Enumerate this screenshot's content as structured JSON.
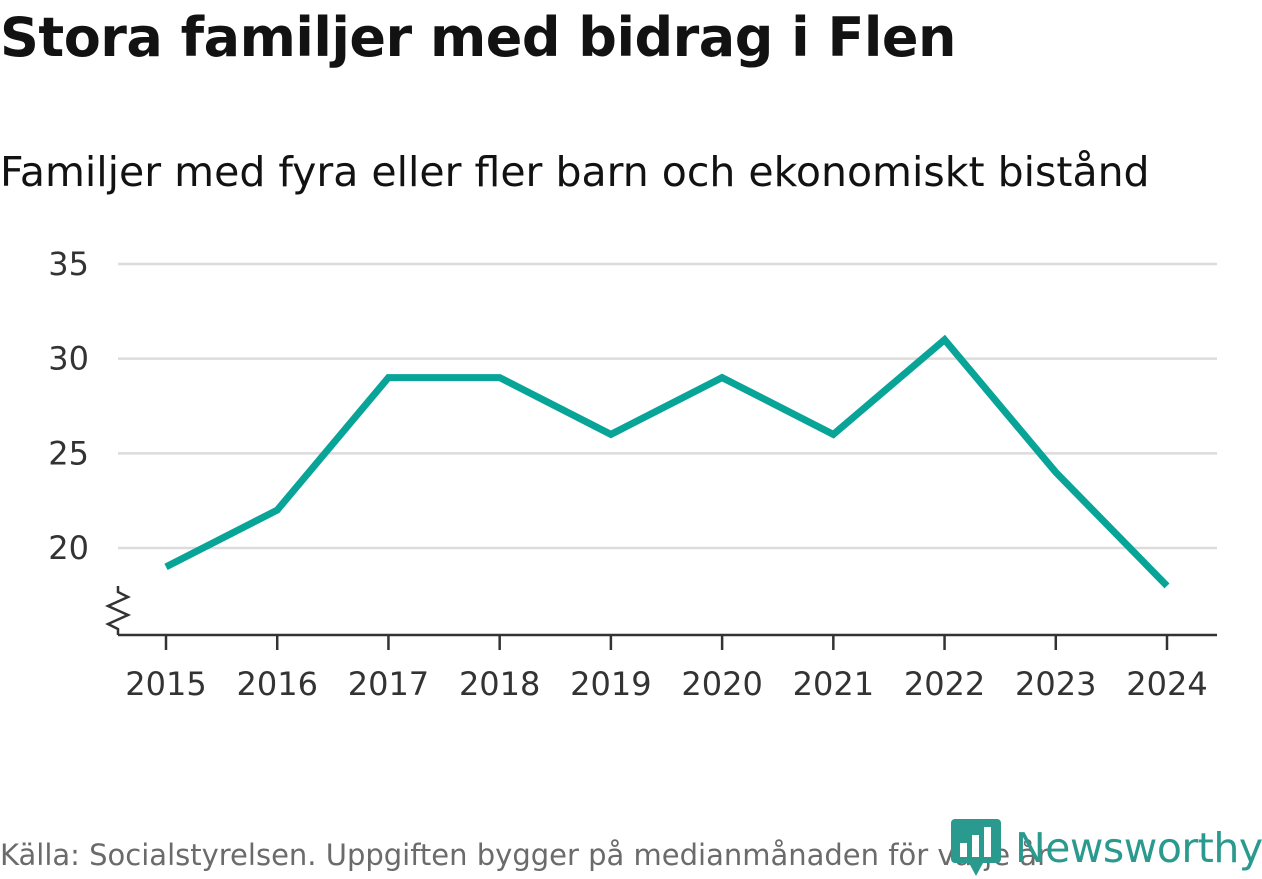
{
  "title": "Stora familjer med bidrag i Flen",
  "subtitle": "Familjer med fyra eller fler barn och ekonomiskt bistånd",
  "source": "Källa: Socialstyrelsen. Uppgiften bygger på medianmånaden för varje år",
  "logo": {
    "text": "Newsworthy",
    "icon": "bar-chart-icon",
    "color": "#2a9a8e"
  },
  "colors": {
    "line": "#08a497",
    "grid": "#dcdcdc",
    "axis": "#333333"
  },
  "chart_data": {
    "type": "line",
    "title": "Stora familjer med bidrag i Flen",
    "subtitle": "Familjer med fyra eller fler barn och ekonomiskt bistånd",
    "xlabel": "",
    "ylabel": "",
    "x": [
      "2015",
      "2016",
      "2017",
      "2018",
      "2019",
      "2020",
      "2021",
      "2022",
      "2023",
      "2024"
    ],
    "series": [
      {
        "name": "Familjer med fyra eller fler barn och ekonomiskt bistånd",
        "values": [
          19,
          22,
          29,
          29,
          26,
          29,
          26,
          31,
          24,
          18
        ]
      }
    ],
    "yticks": [
      20,
      25,
      30,
      35
    ],
    "ylim": [
      15.5,
      35
    ],
    "grid": true,
    "legend": "none",
    "axis_break": true
  }
}
